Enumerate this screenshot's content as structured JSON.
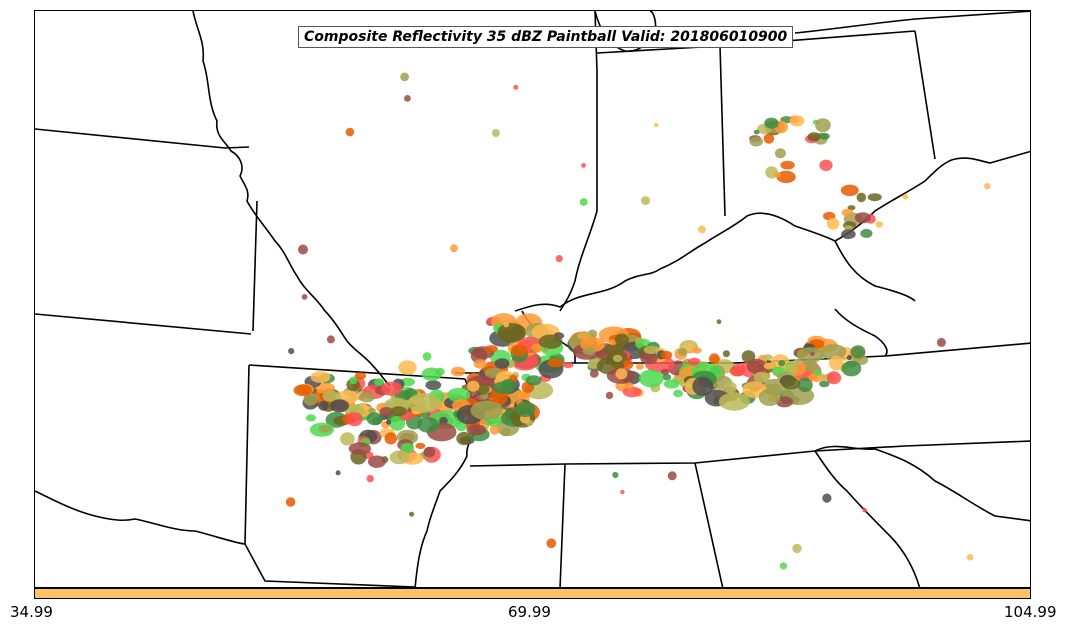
{
  "title": "Composite Reflectivity 35 dBZ Paintball Valid: 201806010900",
  "colorbar": {
    "color": "#ffc266",
    "tick_labels": [
      "34.99",
      "69.99",
      "104.99"
    ]
  },
  "palette": {
    "red": "#ff5050",
    "orange": "#ff9933",
    "dark_orange": "#e65c00",
    "light_orange": "#ffb84d",
    "green": "#4dd94d",
    "dark_green": "#3d8c40",
    "olive": "#a0a050",
    "yellow_olive": "#bcb85a",
    "brown": "#9b4a44",
    "gray": "#4d4d4d",
    "dark_olive": "#6b6520"
  }
}
